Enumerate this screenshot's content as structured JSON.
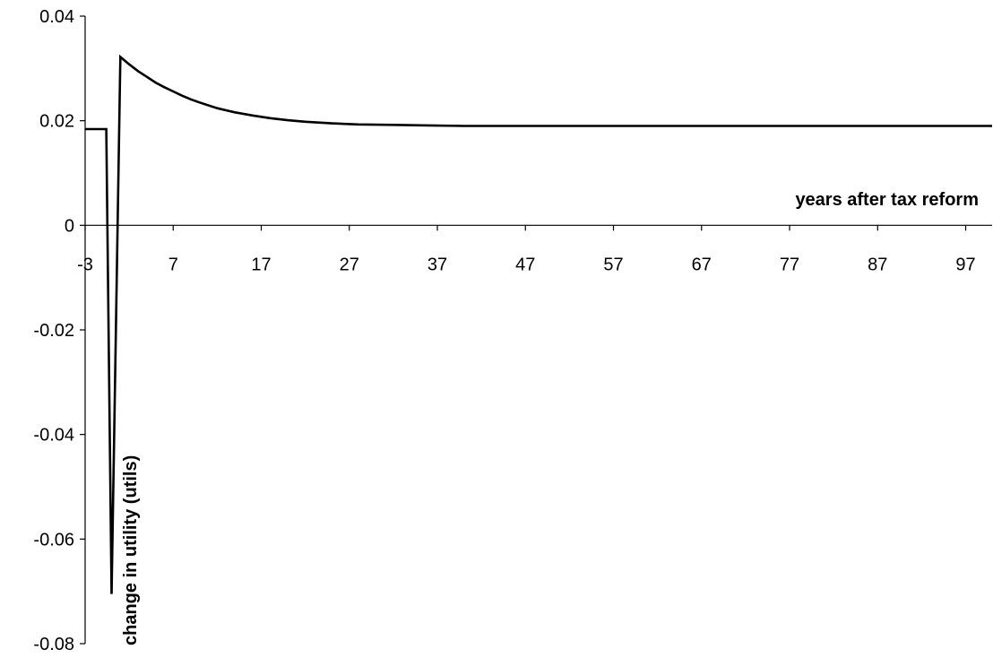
{
  "chart_data": {
    "type": "line",
    "title": "",
    "xlabel": "years after tax reform",
    "ylabel": "change in utility (utils)",
    "ylim": [
      -0.08,
      0.04
    ],
    "xlim": [
      -3,
      100
    ],
    "x_ticks": [
      -3,
      7,
      17,
      27,
      37,
      47,
      57,
      67,
      77,
      87,
      97
    ],
    "x_tick_labels": [
      "-3",
      "7",
      "17",
      "27",
      "37",
      "47",
      "57",
      "67",
      "77",
      "87",
      "97"
    ],
    "y_ticks": [
      0.04,
      0.02,
      0,
      -0.02,
      -0.04,
      -0.06,
      -0.08
    ],
    "y_tick_labels": [
      "0.04",
      "0.02",
      "0",
      "-0.02",
      "-0.04",
      "-0.06",
      "-0.08"
    ],
    "grid": false,
    "legend": "none",
    "line_color": "#000000",
    "series": [
      {
        "x": [
          -3,
          -1,
          -0.6,
          0,
          1,
          2,
          3,
          4,
          5,
          6,
          7,
          8,
          9,
          10,
          12,
          14,
          16,
          18,
          20,
          22,
          25,
          28,
          32,
          36,
          40,
          45,
          50,
          60,
          70,
          80,
          90,
          100
        ],
        "y": [
          0.0184,
          0.0184,
          0.0184,
          -0.0705,
          0.0322,
          0.0308,
          0.0295,
          0.0284,
          0.0273,
          0.0264,
          0.0256,
          0.0248,
          0.0241,
          0.0235,
          0.0224,
          0.0216,
          0.021,
          0.0205,
          0.0201,
          0.0198,
          0.0195,
          0.0193,
          0.0192,
          0.0191,
          0.019,
          0.019,
          0.019,
          0.019,
          0.019,
          0.019,
          0.019,
          0.019
        ]
      }
    ]
  }
}
